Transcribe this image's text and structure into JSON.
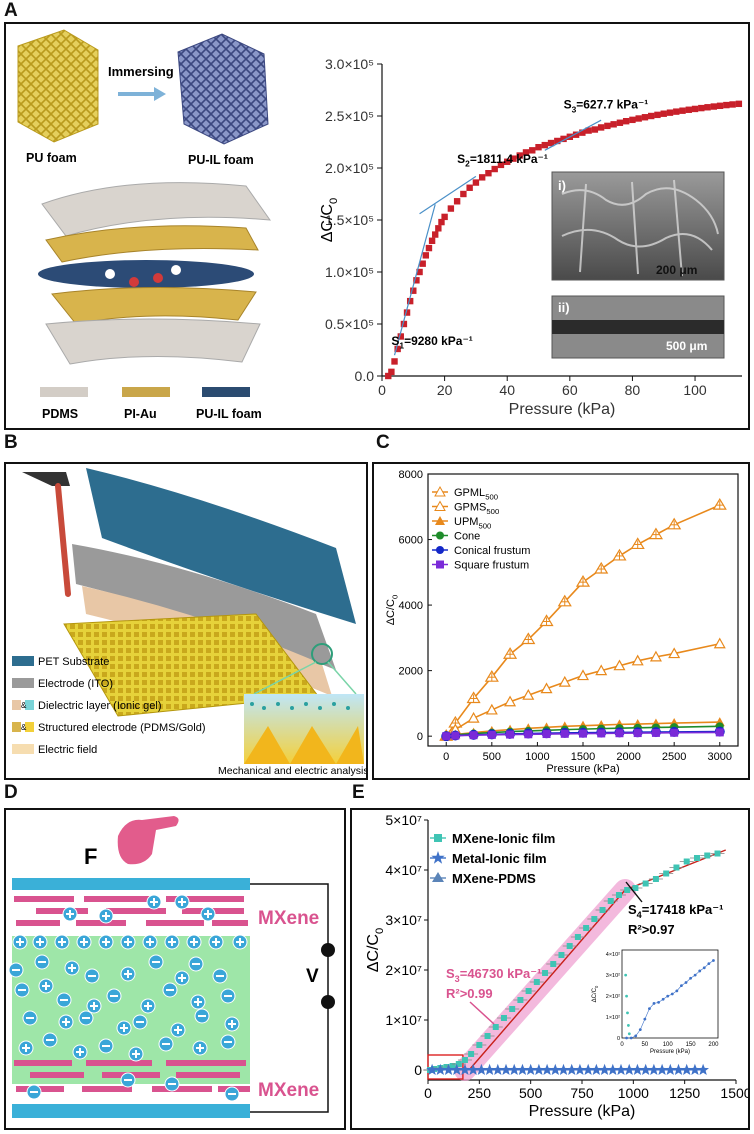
{
  "panels": {
    "A": "A",
    "B": "B",
    "C": "C",
    "D": "D",
    "E": "E"
  },
  "colors": {
    "pdms": "#d3cdc6",
    "piau": "#c9a64a",
    "puil": "#2b4b70",
    "red_marker": "#c8202a",
    "fit_blue": "#4a90c8",
    "orange": "#e8891c",
    "green": "#1e8c2a",
    "blue": "#1428c8",
    "purple": "#7a2ad8",
    "mxene": "#d9538f",
    "cyan": "#3aaed8",
    "teal": "#3fc4b4",
    "electrolyte": "#9ee6a8"
  },
  "panelA": {
    "foam_left": "PU foam",
    "immersing": "Immersing",
    "foam_right": "PU-IL foam",
    "legend": [
      "PDMS",
      "PI-Au",
      "PU-IL foam"
    ],
    "sem_i": "i)",
    "sem_ii": "ii)",
    "scale_i": "200 μm",
    "scale_ii": "500 μm"
  },
  "panelB": {
    "legend": [
      "PET Substrate",
      "Electrode (ITO)",
      "Dielectric layer (Ionic gel)",
      "Structured electrode (PDMS/Gold)",
      "Electric field"
    ],
    "amp": "&",
    "caption": "Mechanical and electric analysis"
  },
  "panelD": {
    "force": "F",
    "top_label": "MXene",
    "bottom_label": "MXene",
    "voltage": "V"
  },
  "chart_data": [
    {
      "id": "A",
      "type": "scatter",
      "title": "",
      "xlabel": "Pressure (kPa)",
      "ylabel": "ΔC/C0",
      "xlim": [
        0,
        115
      ],
      "ylim": [
        0,
        300000
      ],
      "xticks": [
        "0",
        "20",
        "40",
        "60",
        "80",
        "100"
      ],
      "yticks": [
        "0.0",
        "0.5×10⁵",
        "1.0×10⁵",
        "1.5×10⁵",
        "2.0×10⁵",
        "2.5×10⁵",
        "3.0×10⁵"
      ],
      "series": [
        {
          "name": "ΔC/C0",
          "x": [
            2,
            3,
            4,
            5,
            6,
            7,
            8,
            9,
            10,
            11,
            12,
            13,
            14,
            15,
            16,
            17,
            18,
            19,
            20,
            22,
            24,
            26,
            28,
            30,
            32,
            34,
            36,
            38,
            40,
            42,
            44,
            46,
            48,
            50,
            52,
            54,
            56,
            58,
            60,
            62,
            64,
            66,
            68,
            70,
            72,
            74,
            76,
            78,
            80,
            82,
            84,
            86,
            88,
            90,
            92,
            94,
            96,
            98,
            100,
            102,
            104,
            106,
            108,
            110,
            112,
            114
          ],
          "y": [
            0,
            4000,
            14000,
            26000,
            38000,
            50000,
            61000,
            72000,
            82000,
            92000,
            100000,
            108000,
            116000,
            123000,
            130000,
            136000,
            142000,
            148000,
            153000,
            161000,
            168000,
            175000,
            181000,
            186000,
            191000,
            195000,
            199000,
            203000,
            206000,
            209000,
            212000,
            215000,
            217000,
            220000,
            222000,
            224000,
            226000,
            228000,
            230000,
            232000,
            234000,
            236000,
            237000,
            239000,
            240500,
            242000,
            243500,
            245000,
            246300,
            247600,
            248800,
            250000,
            251100,
            252200,
            253200,
            254200,
            255100,
            256000,
            256800,
            257600,
            258400,
            259100,
            259800,
            260500,
            261100,
            261700
          ]
        }
      ],
      "annotations": [
        {
          "prefix": "S",
          "sub": "1",
          "value": "=9280 kPa⁻¹"
        },
        {
          "prefix": "S",
          "sub": "2",
          "value": "=1811.4 kPa⁻¹"
        },
        {
          "prefix": "S",
          "sub": "3",
          "value": "=627.7 kPa⁻¹"
        }
      ]
    },
    {
      "id": "C",
      "type": "line",
      "xlabel": "Pressure (kPa)",
      "ylabel": "ΔC/C0",
      "xlim": [
        -200,
        3200
      ],
      "ylim": [
        -300,
        8000
      ],
      "xticks": [
        "0",
        "500",
        "1000",
        "1500",
        "2000",
        "2500",
        "3000"
      ],
      "yticks": [
        "0",
        "2000",
        "4000",
        "6000",
        "8000"
      ],
      "x": [
        0,
        100,
        300,
        500,
        700,
        900,
        1100,
        1300,
        1500,
        1700,
        1900,
        2100,
        2300,
        2500,
        3000
      ],
      "series": [
        {
          "name": "GPML",
          "sub": "500",
          "values": [
            0,
            400,
            1150,
            1800,
            2500,
            2950,
            3500,
            4100,
            4700,
            5100,
            5500,
            5850,
            6150,
            6450,
            7050
          ]
        },
        {
          "name": "GPMS",
          "sub": "500",
          "values": [
            0,
            200,
            550,
            800,
            1050,
            1250,
            1450,
            1650,
            1850,
            2000,
            2150,
            2300,
            2420,
            2520,
            2820
          ]
        },
        {
          "name": "UPM",
          "sub": "500",
          "values": [
            0,
            50,
            110,
            160,
            200,
            240,
            270,
            300,
            320,
            340,
            360,
            370,
            385,
            400,
            430
          ]
        },
        {
          "name": "Cone",
          "sub": "",
          "values": [
            0,
            40,
            80,
            110,
            140,
            160,
            180,
            200,
            215,
            230,
            245,
            255,
            265,
            275,
            300
          ]
        },
        {
          "name": "Conical frustum",
          "sub": "",
          "values": [
            0,
            20,
            40,
            55,
            70,
            80,
            90,
            100,
            105,
            110,
            115,
            120,
            125,
            130,
            140
          ]
        },
        {
          "name": "Square frustum",
          "sub": "",
          "values": [
            0,
            15,
            30,
            40,
            50,
            58,
            65,
            72,
            78,
            84,
            90,
            95,
            100,
            105,
            115
          ]
        }
      ]
    },
    {
      "id": "E",
      "type": "scatter",
      "xlabel": "Pressure (kPa)",
      "ylabel": "ΔC/C0",
      "xlim": [
        0,
        1500
      ],
      "ylim": [
        -2000000,
        50000000
      ],
      "xticks": [
        "0",
        "250",
        "500",
        "750",
        "1000",
        "1250",
        "1500"
      ],
      "yticks": [
        "0",
        "1×10⁷",
        "2×10⁷",
        "3×10⁷",
        "4×10⁷",
        "5×10⁷"
      ],
      "series": [
        {
          "name": "MXene-Ionic film",
          "x": [
            10,
            30,
            60,
            90,
            120,
            150,
            180,
            210,
            250,
            290,
            330,
            370,
            410,
            450,
            490,
            530,
            570,
            610,
            650,
            690,
            730,
            770,
            810,
            850,
            890,
            930,
            970,
            1010,
            1060,
            1110,
            1160,
            1210,
            1260,
            1310,
            1360,
            1410
          ],
          "y": [
            0,
            200000,
            400000,
            600000,
            800000,
            1200000,
            2000000,
            3200000,
            5000000,
            6800000,
            8600000,
            10400000,
            12200000,
            14000000,
            15800000,
            17600000,
            19400000,
            21200000,
            23000000,
            24800000,
            26600000,
            28400000,
            30200000,
            32000000,
            33800000,
            35000000,
            36000000,
            36400000,
            37300000,
            38200000,
            39300000,
            40500000,
            41700000,
            42400000,
            42900000,
            43300000
          ]
        },
        {
          "name": "Metal-Ionic film",
          "x": [
            20,
            60,
            100,
            140,
            180,
            220,
            260,
            300,
            340,
            380,
            420,
            460,
            500,
            540,
            580,
            620,
            660,
            700,
            740,
            780,
            820,
            860,
            900,
            940,
            980,
            1020,
            1060,
            1100,
            1140,
            1180,
            1220,
            1260,
            1300,
            1340
          ],
          "y": [
            0,
            0,
            0,
            0,
            0,
            0,
            0,
            0,
            0,
            0,
            0,
            0,
            0,
            0,
            0,
            0,
            0,
            0,
            0,
            0,
            0,
            0,
            0,
            0,
            0,
            0,
            0,
            0,
            0,
            0,
            0,
            0,
            0,
            0
          ]
        },
        {
          "name": "MXene-PDMS",
          "x": [],
          "y": []
        }
      ],
      "fit_line": {
        "x": [
          200,
          960,
          1450
        ],
        "y": [
          0,
          36000000,
          44000000
        ]
      },
      "annotations": [
        {
          "prefix": "S",
          "sub": "3",
          "value": "=46730 kPa⁻¹",
          "r2": "R²>0.99"
        },
        {
          "prefix": "S",
          "sub": "4",
          "value": "=17418 kPa⁻¹",
          "r2": "R²>0.97"
        }
      ],
      "inset": {
        "xlabel": "Pressure (kPa)",
        "ylabel": "ΔC/C0",
        "xticks": [
          "0",
          "50",
          "100",
          "150",
          "200"
        ],
        "yticks": [
          "0",
          "1×10²",
          "2×10²",
          "3×10²",
          "4×10²"
        ],
        "xlim": [
          0,
          210
        ],
        "ylim": [
          0,
          420
        ],
        "x": [
          10,
          20,
          30,
          40,
          50,
          60,
          70,
          80,
          90,
          100,
          110,
          120,
          130,
          140,
          150,
          160,
          170,
          180,
          190,
          200
        ],
        "y": [
          0,
          0,
          10,
          40,
          90,
          140,
          165,
          170,
          185,
          200,
          210,
          225,
          250,
          265,
          285,
          300,
          320,
          335,
          355,
          370
        ]
      }
    }
  ]
}
